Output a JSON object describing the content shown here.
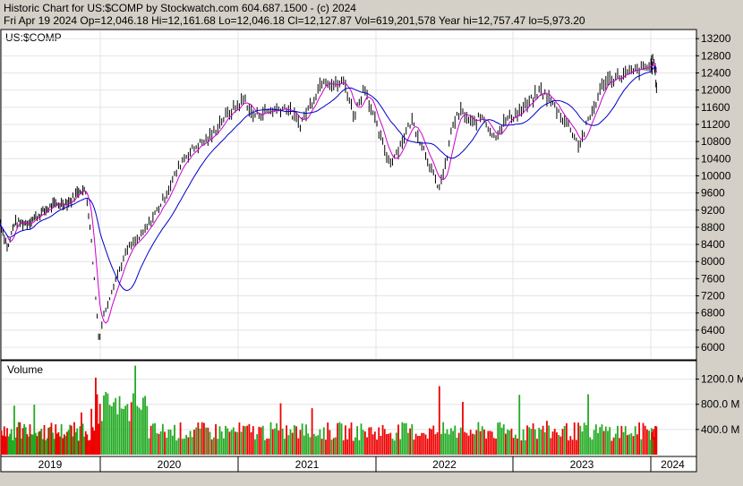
{
  "header": {
    "title_line": "Historic Chart for US:$COMP by Stockwatch.com 604.687.1500 - (c) 2024",
    "info_line": "Fri Apr 19 2024   Op=12,046.18   Hi=12,161.68   Lo=12,046.18   Cl=12,127.87   Vol=619,201,578   Year hi=12,757.47   lo=5,973.20"
  },
  "price_panel_label": "US:$COMP",
  "volume_panel_label": "Volume",
  "colors": {
    "background": "#d4d0c8",
    "panel": "#ffffff",
    "price_bars": "#000000",
    "ma_short": "#cc00cc",
    "ma_long": "#0000cc",
    "volume_up": "#22aa22",
    "volume_down": "#ee0000"
  },
  "chart_data": [
    {
      "type": "line",
      "title": "US:$COMP",
      "x_years": [
        "2019",
        "2020",
        "2021",
        "2022",
        "2023",
        "2024"
      ],
      "price_ticks": [
        "13200",
        "12800",
        "12400",
        "12000",
        "11600",
        "11200",
        "10800",
        "10400",
        "10000",
        "9600",
        "9200",
        "8800",
        "8400",
        "8000",
        "7600",
        "7200",
        "6800",
        "6400",
        "6000"
      ],
      "ylim": [
        5750,
        13350
      ],
      "series": [
        {
          "name": "close",
          "values": [
            {
              "x": 0,
              "y": 8900
            },
            {
              "x": 0.08,
              "y": 8300
            },
            {
              "x": 0.14,
              "y": 8900
            },
            {
              "x": 0.27,
              "y": 8900
            },
            {
              "x": 0.52,
              "y": 9300
            },
            {
              "x": 0.7,
              "y": 9400
            },
            {
              "x": 0.8,
              "y": 9700
            },
            {
              "x": 0.86,
              "y": 9600
            },
            {
              "x": 0.9,
              "y": 8800
            },
            {
              "x": 0.96,
              "y": 7000
            },
            {
              "x": 0.99,
              "y": 6100
            },
            {
              "x": 1.02,
              "y": 6700
            },
            {
              "x": 1.1,
              "y": 7500
            },
            {
              "x": 1.2,
              "y": 8300
            },
            {
              "x": 1.3,
              "y": 8600
            },
            {
              "x": 1.45,
              "y": 9400
            },
            {
              "x": 1.6,
              "y": 10400
            },
            {
              "x": 1.7,
              "y": 10700
            },
            {
              "x": 1.8,
              "y": 10900
            },
            {
              "x": 1.88,
              "y": 11300
            },
            {
              "x": 2.05,
              "y": 11800
            },
            {
              "x": 2.1,
              "y": 11400
            },
            {
              "x": 2.2,
              "y": 11500
            },
            {
              "x": 2.35,
              "y": 11600
            },
            {
              "x": 2.45,
              "y": 11200
            },
            {
              "x": 2.53,
              "y": 11700
            },
            {
              "x": 2.62,
              "y": 12300
            },
            {
              "x": 2.7,
              "y": 12100
            },
            {
              "x": 2.77,
              "y": 12200
            },
            {
              "x": 2.84,
              "y": 11400
            },
            {
              "x": 2.92,
              "y": 12100
            },
            {
              "x": 2.96,
              "y": 11600
            },
            {
              "x": 3.02,
              "y": 11000
            },
            {
              "x": 3.1,
              "y": 10300
            },
            {
              "x": 3.16,
              "y": 10600
            },
            {
              "x": 3.26,
              "y": 11300
            },
            {
              "x": 3.34,
              "y": 10700
            },
            {
              "x": 3.4,
              "y": 10200
            },
            {
              "x": 3.45,
              "y": 9700
            },
            {
              "x": 3.5,
              "y": 10100
            },
            {
              "x": 3.56,
              "y": 11200
            },
            {
              "x": 3.62,
              "y": 11500
            },
            {
              "x": 3.7,
              "y": 11200
            },
            {
              "x": 3.78,
              "y": 11400
            },
            {
              "x": 3.86,
              "y": 10900
            },
            {
              "x": 3.95,
              "y": 11300
            },
            {
              "x": 4.05,
              "y": 11500
            },
            {
              "x": 4.12,
              "y": 11700
            },
            {
              "x": 4.2,
              "y": 12000
            },
            {
              "x": 4.26,
              "y": 11800
            },
            {
              "x": 4.35,
              "y": 11400
            },
            {
              "x": 4.42,
              "y": 11100
            },
            {
              "x": 4.48,
              "y": 10700
            },
            {
              "x": 4.55,
              "y": 11300
            },
            {
              "x": 4.6,
              "y": 11700
            },
            {
              "x": 4.66,
              "y": 12200
            },
            {
              "x": 4.75,
              "y": 12300
            },
            {
              "x": 4.85,
              "y": 12400
            },
            {
              "x": 4.95,
              "y": 12500
            },
            {
              "x": 5.02,
              "y": 12600
            },
            {
              "x": 5.06,
              "y": 12700
            },
            {
              "x": 5.1,
              "y": 12400
            },
            {
              "x": 5.13,
              "y": 12100
            }
          ]
        }
      ]
    },
    {
      "type": "bar",
      "title": "Volume",
      "volume_ticks": [
        "1200.0 M",
        "800.0 M",
        "400.0 M"
      ],
      "ylim": [
        0,
        1450
      ]
    }
  ]
}
